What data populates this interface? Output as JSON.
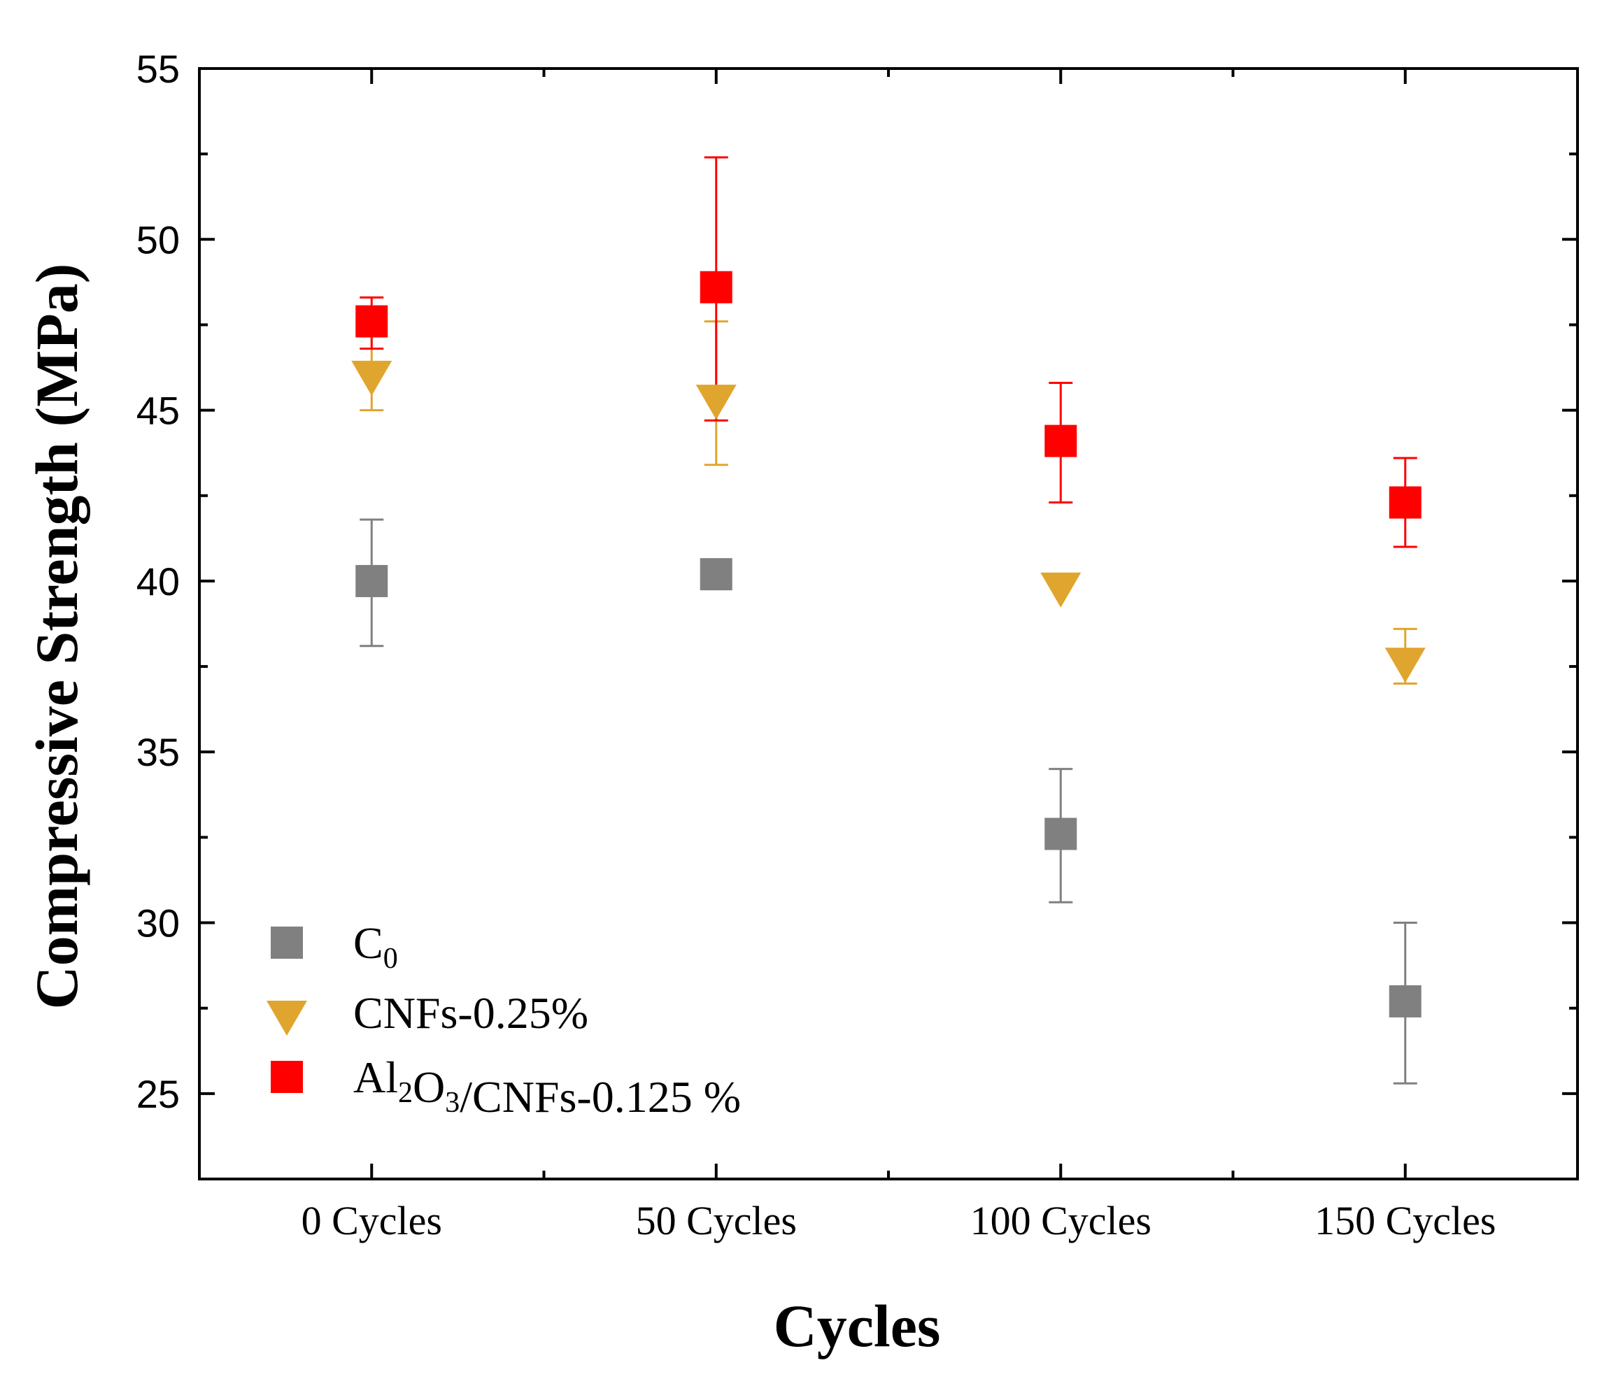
{
  "chart_data": {
    "type": "scatter",
    "xlabel": "Cycles",
    "ylabel": "Compressive Strength (MPa)",
    "categories": [
      "0 Cycles",
      "50 Cycles",
      "100 Cycles",
      "150 Cycles"
    ],
    "ylim": [
      22.5,
      55
    ],
    "yticks": [
      25,
      30,
      35,
      40,
      45,
      50,
      55
    ],
    "grid": false,
    "legend_position": "bottom-left",
    "series": [
      {
        "name": "C0",
        "legend": {
          "main": "C",
          "sub": "0",
          "tail": ""
        },
        "marker": "square",
        "color": "#808080",
        "values": [
          40.0,
          40.2,
          32.6,
          27.7
        ],
        "err_upper": [
          41.8,
          40.2,
          34.5,
          30.0
        ],
        "err_lower": [
          38.1,
          40.2,
          30.6,
          25.3
        ]
      },
      {
        "name": "CNFs-0.25%",
        "legend": {
          "main": "CNFs-0.25%"
        },
        "marker": "triangle-down",
        "color": "#E0A52E",
        "values": [
          46.1,
          45.4,
          39.9,
          37.7
        ],
        "err_upper": [
          47.2,
          47.6,
          39.9,
          38.6
        ],
        "err_lower": [
          45.0,
          43.4,
          39.9,
          37.0
        ]
      },
      {
        "name": "Al2O3/CNFs-0.125 %",
        "legend": {
          "main": "Al",
          "sub1": "2",
          "mid": "O",
          "sub2": "3",
          "tail": "/CNFs-0.125 %"
        },
        "marker": "square",
        "color": "#FF0000",
        "values": [
          47.6,
          48.6,
          44.1,
          42.3
        ],
        "err_upper": [
          48.3,
          52.4,
          45.8,
          43.6
        ],
        "err_lower": [
          46.8,
          44.7,
          42.3,
          41.0
        ]
      }
    ]
  }
}
